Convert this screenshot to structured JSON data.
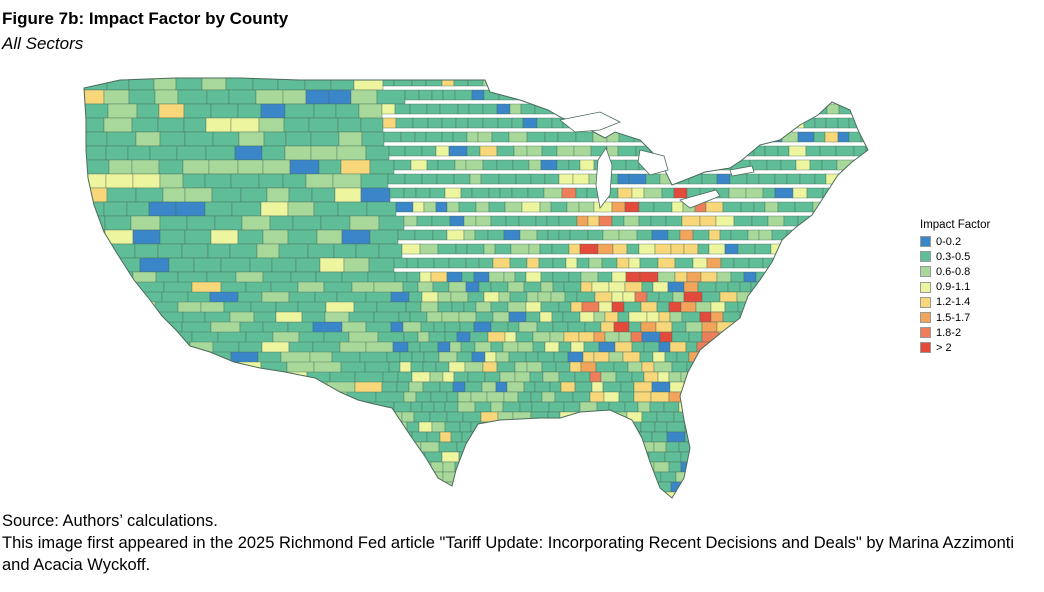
{
  "figure": {
    "title": "Figure 7b: Impact Factor by County",
    "subtitle": "All Sectors"
  },
  "legend": {
    "title": "Impact Factor",
    "items": [
      {
        "label": "0-0.2",
        "color": "#3a86c8"
      },
      {
        "label": "0.3-0.5",
        "color": "#5fbd97"
      },
      {
        "label": "0.6-0.8",
        "color": "#a8d99a"
      },
      {
        "label": "0.9-1.1",
        "color": "#eef59f"
      },
      {
        "label": "1.2-1.4",
        "color": "#f7d779"
      },
      {
        "label": "1.5-1.7",
        "color": "#f3a45b"
      },
      {
        "label": "1.8-2",
        "color": "#ee7d5a"
      },
      {
        "label": "> 2",
        "color": "#e34a3c"
      }
    ]
  },
  "footer": {
    "source": "Source: Authors’ calculations.",
    "note": "This image first appeared in the 2025 Richmond Fed article \"Tariff Update: Incorporating Recent Decisions and Deals\" by Marina Azzimonti and Acacia Wyckoff."
  }
}
